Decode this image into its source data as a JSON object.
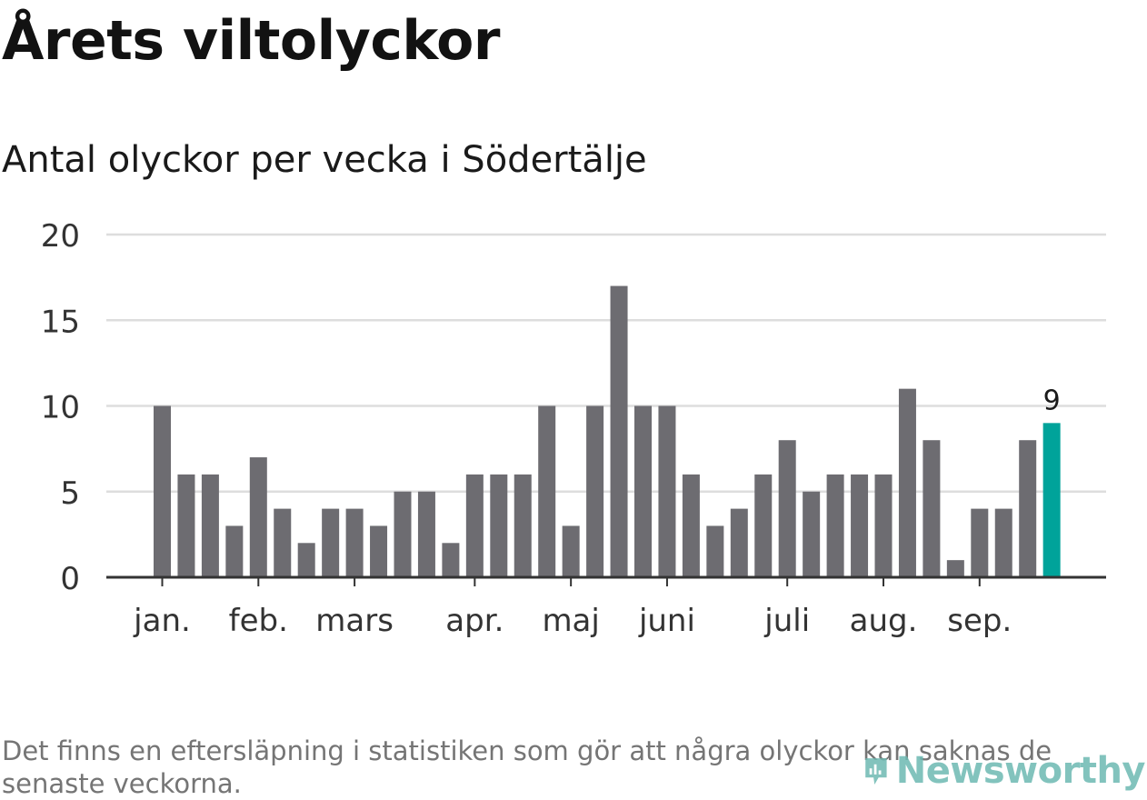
{
  "chart_data": {
    "type": "bar",
    "title": "Årets viltolyckor",
    "subtitle": "Antal olyckor per vecka i Södertälje",
    "xlabel": "",
    "ylabel": "",
    "ylim": [
      0,
      20
    ],
    "y_ticks": [
      0,
      5,
      10,
      15,
      20
    ],
    "grid": true,
    "values": [
      10,
      6,
      6,
      3,
      7,
      4,
      2,
      4,
      4,
      3,
      5,
      5,
      2,
      6,
      6,
      6,
      10,
      3,
      10,
      17,
      10,
      10,
      6,
      3,
      4,
      6,
      8,
      5,
      6,
      6,
      6,
      11,
      8,
      1,
      4,
      4,
      8,
      9
    ],
    "month_ticks": [
      {
        "label": "jan.",
        "week_index": 0
      },
      {
        "label": "feb.",
        "week_index": 4
      },
      {
        "label": "mars",
        "week_index": 8
      },
      {
        "label": "apr.",
        "week_index": 13
      },
      {
        "label": "maj",
        "week_index": 17
      },
      {
        "label": "juni",
        "week_index": 21
      },
      {
        "label": "juli",
        "week_index": 26
      },
      {
        "label": "aug.",
        "week_index": 30
      },
      {
        "label": "sep.",
        "week_index": 34
      }
    ],
    "highlight_label": "9",
    "colors": {
      "bar": "#6d6c71",
      "highlight": "#00a39a",
      "grid": "#dddddd",
      "axis": "#333333"
    }
  },
  "footnote": "Det finns en eftersläpning i statistiken som gör att några olyckor kan saknas de senaste veckorna.",
  "logo": {
    "text": "Newsworthy",
    "color": "#6db9b2"
  }
}
